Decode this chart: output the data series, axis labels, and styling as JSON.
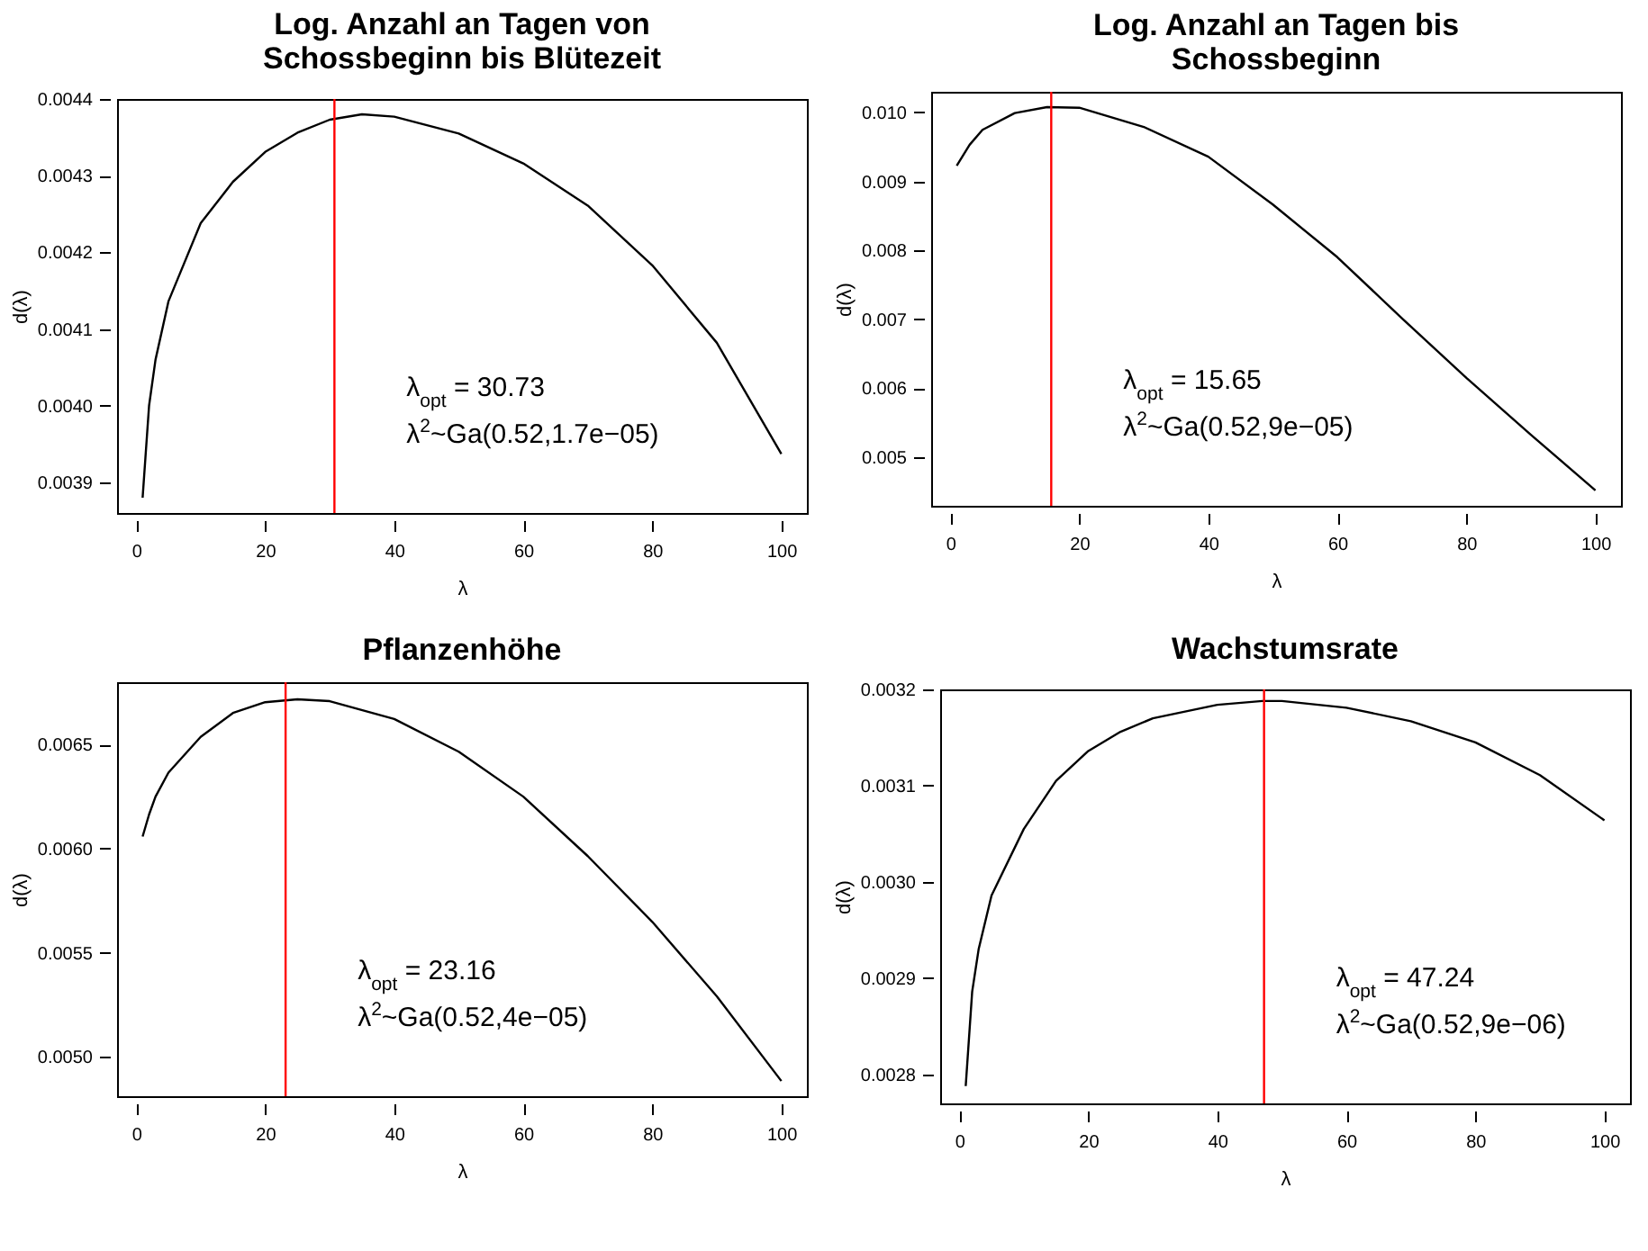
{
  "chart_data": [
    {
      "type": "line",
      "title": "Log. Anzahl an Tagen von\nSchossbeginn bis Blütezeit",
      "xlabel": "λ",
      "ylabel": "d(λ)",
      "x": [
        1,
        2,
        3,
        5,
        10,
        15,
        20,
        25,
        30,
        35,
        40,
        50,
        60,
        70,
        80,
        90,
        100
      ],
      "series": [
        {
          "color": "#000000",
          "values": [
            0.00388,
            0.004,
            0.00406,
            0.004136,
            0.004238,
            0.004292,
            0.004331,
            0.004356,
            0.004373,
            0.00438,
            0.004377,
            0.004355,
            0.004316,
            0.004261,
            0.004183,
            0.004082,
            0.003937
          ]
        }
      ],
      "xlim": [
        -2.96,
        103.96
      ],
      "ylim": [
        0.00386,
        0.0044
      ],
      "xticks": [
        0,
        20,
        40,
        60,
        80,
        100
      ],
      "yticks": [
        {
          "value": 0.0039,
          "label": "0.0039"
        },
        {
          "value": 0.004,
          "label": "0.0040"
        },
        {
          "value": 0.0041,
          "label": "0.0041"
        },
        {
          "value": 0.0042,
          "label": "0.0042"
        },
        {
          "value": 0.0043,
          "label": "0.0043"
        },
        {
          "value": 0.0044,
          "label": "0.0044"
        }
      ],
      "ref_lines": [
        {
          "axis": "x",
          "value": 30.73,
          "color": "#ff0000"
        }
      ],
      "annotations": [
        "λ$_{opt}$ = 30.73",
        "λ$^{2}$~Ga(0.52,1.7e−05)"
      ]
    },
    {
      "type": "line",
      "title": "Log. Anzahl an Tagen bis\nSchossbeginn",
      "xlabel": "λ",
      "ylabel": "d(λ)",
      "x": [
        1,
        3,
        5,
        10,
        15,
        20,
        30,
        40,
        50,
        60,
        70,
        80,
        90,
        100
      ],
      "series": [
        {
          "color": "#000000",
          "values": [
            0.009227,
            0.009531,
            0.009748,
            0.009991,
            0.010078,
            0.010069,
            0.00979,
            0.009358,
            0.008663,
            0.007899,
            0.007014,
            0.006146,
            0.005321,
            0.004514
          ]
        }
      ],
      "xlim": [
        -2.96,
        103.96
      ],
      "ylim": [
        0.00429,
        0.0103
      ],
      "xticks": [
        0,
        20,
        40,
        60,
        80,
        100
      ],
      "yticks": [
        {
          "value": 0.005,
          "label": "0.005"
        },
        {
          "value": 0.006,
          "label": "0.006"
        },
        {
          "value": 0.007,
          "label": "0.007"
        },
        {
          "value": 0.008,
          "label": "0.008"
        },
        {
          "value": 0.009,
          "label": "0.009"
        },
        {
          "value": 0.01,
          "label": "0.010"
        }
      ],
      "ref_lines": [
        {
          "axis": "x",
          "value": 15.65,
          "color": "#ff0000"
        }
      ],
      "annotations": [
        "λ$_{opt}$ = 15.65",
        "λ$^{2}$~Ga(0.52,9e−05)"
      ]
    },
    {
      "type": "line",
      "title": "Pflanzenhöhe",
      "xlabel": "λ",
      "ylabel": "d(λ)",
      "x": [
        1,
        2,
        3,
        5,
        10,
        15,
        20,
        25,
        30,
        40,
        50,
        60,
        70,
        80,
        90,
        100
      ],
      "series": [
        {
          "color": "#000000",
          "values": [
            0.006058,
            0.006164,
            0.00625,
            0.006365,
            0.006537,
            0.006652,
            0.006704,
            0.006718,
            0.006709,
            0.006623,
            0.006466,
            0.00625,
            0.005964,
            0.005648,
            0.00529,
            0.004883
          ]
        }
      ],
      "xlim": [
        -2.96,
        103.96
      ],
      "ylim": [
        0.00481,
        0.0068
      ],
      "xticks": [
        0,
        20,
        40,
        60,
        80,
        100
      ],
      "yticks": [
        {
          "value": 0.005,
          "label": "0.0050"
        },
        {
          "value": 0.0055,
          "label": "0.0055"
        },
        {
          "value": 0.006,
          "label": "0.0060"
        },
        {
          "value": 0.0065,
          "label": "0.0065"
        }
      ],
      "ref_lines": [
        {
          "axis": "x",
          "value": 23.16,
          "color": "#ff0000"
        }
      ],
      "annotations": [
        "λ$_{opt}$ = 23.16",
        "λ$^{2}$~Ga(0.52,4e−05)"
      ]
    },
    {
      "type": "line",
      "title": "Wachstumsrate",
      "xlabel": "λ",
      "ylabel": "d(λ)",
      "x": [
        1,
        2,
        3,
        5,
        10,
        15,
        20,
        25,
        30,
        40,
        47,
        50,
        60,
        70,
        80,
        90,
        100
      ],
      "series": [
        {
          "color": "#000000",
          "values": [
            0.002788,
            0.002886,
            0.00293,
            0.002986,
            0.003055,
            0.003105,
            0.003136,
            0.003156,
            0.00317,
            0.003184,
            0.003188,
            0.003188,
            0.003181,
            0.003167,
            0.003145,
            0.003111,
            0.003064
          ]
        }
      ],
      "xlim": [
        -2.96,
        103.96
      ],
      "ylim": [
        0.00277,
        0.0032
      ],
      "xticks": [
        0,
        20,
        40,
        60,
        80,
        100
      ],
      "yticks": [
        {
          "value": 0.0028,
          "label": "0.0028"
        },
        {
          "value": 0.0029,
          "label": "0.0029"
        },
        {
          "value": 0.003,
          "label": "0.0030"
        },
        {
          "value": 0.0031,
          "label": "0.0031"
        },
        {
          "value": 0.0032,
          "label": "0.0032"
        }
      ],
      "ref_lines": [
        {
          "axis": "x",
          "value": 47.24,
          "color": "#ff0000"
        }
      ],
      "annotations": [
        "λ$_{opt}$ = 47.24",
        "λ$^{2}$~Ga(0.52,9e−06)"
      ]
    }
  ]
}
